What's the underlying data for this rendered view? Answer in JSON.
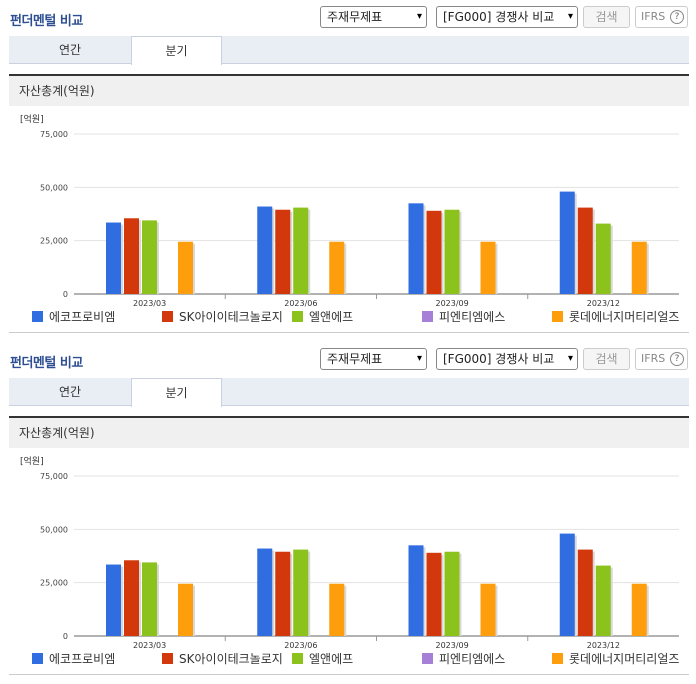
{
  "panels": [
    {
      "title": "펀더멘털 비교",
      "select1": "주재무제표",
      "select2": "[FG000] 경쟁사 비교",
      "search_label": "검색",
      "ifrs_label": "IFRS",
      "tabs": [
        "연간",
        "분기"
      ],
      "active_tab": "분기",
      "subhead": "자산총계(억원)"
    },
    {
      "title": "펀더멘털 비교",
      "select1": "주재무제표",
      "select2": "[FG000] 경쟁사 비교",
      "search_label": "검색",
      "ifrs_label": "IFRS",
      "tabs": [
        "연간",
        "분기"
      ],
      "active_tab": "분기",
      "subhead": "자산총계(억원)"
    }
  ],
  "icons": {
    "help": "question-circle-icon",
    "dropdown": "chevron-down-icon"
  },
  "chart_data": {
    "type": "bar",
    "unit_label": "[억원]",
    "categories": [
      "2023/03",
      "2023/06",
      "2023/09",
      "2023/12"
    ],
    "ylim": [
      0,
      75000
    ],
    "yticks": [
      "0",
      "25,000",
      "50,000",
      "75,000"
    ],
    "ytick_values": [
      0,
      25000,
      50000,
      75000
    ],
    "grid": true,
    "legend_position": "bottom",
    "series": [
      {
        "name": "에코프로비엠",
        "color": "#2f6de1",
        "values": [
          33500,
          41000,
          42500,
          48000
        ]
      },
      {
        "name": "SK아이이테크놀로지",
        "color": "#d2380c",
        "values": [
          35500,
          39500,
          39000,
          40500
        ]
      },
      {
        "name": "엘앤에프",
        "color": "#8bc21c",
        "values": [
          34500,
          40500,
          39500,
          33000
        ]
      },
      {
        "name": "피엔티엠에스",
        "color": "#a67fd6",
        "values": [
          null,
          null,
          null,
          null
        ]
      },
      {
        "name": "롯데에너지머티리얼즈",
        "color": "#ff9e0d",
        "values": [
          24500,
          24500,
          24500,
          24500
        ]
      }
    ]
  }
}
